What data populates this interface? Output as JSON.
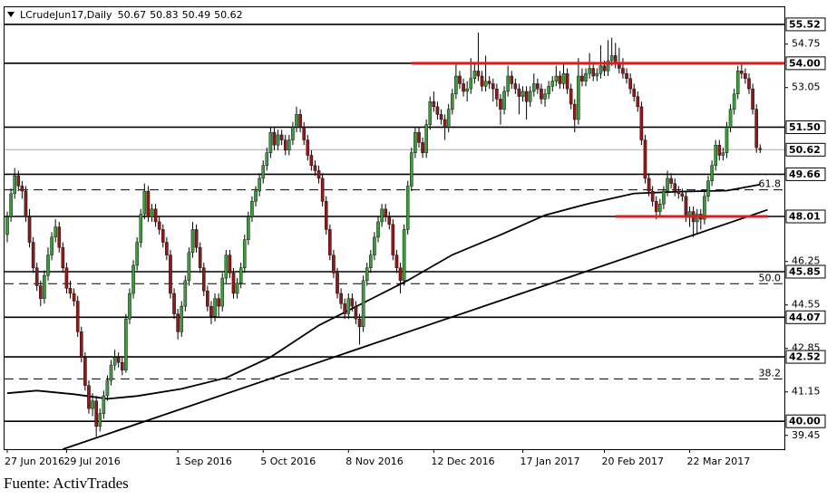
{
  "chart_data": {
    "type": "candlestick",
    "header": {
      "symbol": "LCrudeJun17,Daily"
    },
    "source": "Fuente: ActivTrades",
    "categories": [
      "27 Jun 2016",
      null,
      null,
      null,
      null,
      null,
      null,
      null,
      null,
      null,
      null,
      null,
      null,
      null,
      null,
      null,
      "29 Jul 2016",
      null,
      null,
      null,
      null,
      null,
      null,
      null,
      null,
      null,
      null,
      null,
      null,
      null,
      null,
      null,
      null,
      null,
      null,
      null,
      null,
      null,
      null,
      null,
      null,
      null,
      null,
      null,
      null,
      null,
      "1 Sep 2016",
      null,
      null,
      null,
      null,
      null,
      null,
      null,
      null,
      null,
      null,
      null,
      null,
      null,
      null,
      null,
      null,
      null,
      null,
      null,
      null,
      null,
      null,
      "5 Oct 2016",
      null,
      null,
      null,
      null,
      null,
      null,
      null,
      null,
      null,
      null,
      null,
      null,
      null,
      null,
      null,
      null,
      null,
      null,
      null,
      null,
      null,
      null,
      "8 Nov 2016",
      null,
      null,
      null,
      null,
      null,
      null,
      null,
      null,
      null,
      null,
      null,
      null,
      null,
      null,
      null,
      null,
      null,
      null,
      null,
      null,
      null,
      null,
      "12 Dec 2016",
      null,
      null,
      null,
      null,
      null,
      null,
      null,
      null,
      null,
      null,
      null,
      null,
      null,
      null,
      null,
      null,
      null,
      null,
      null,
      null,
      null,
      null,
      null,
      "17 Jan 2017",
      null,
      null,
      null,
      null,
      null,
      null,
      null,
      null,
      null,
      null,
      null,
      null,
      null,
      null,
      null,
      null,
      null,
      null,
      null,
      null,
      null,
      "20 Feb 2017",
      null,
      null,
      null,
      null,
      null,
      null,
      null,
      null,
      null,
      null,
      null,
      null,
      null,
      null,
      null,
      null,
      null,
      null,
      null,
      null,
      null,
      null,
      "22 Mar 2017",
      null,
      null,
      null,
      null,
      null,
      null,
      null,
      null,
      null,
      null,
      null,
      null,
      null,
      null,
      null,
      null,
      null,
      null,
      null
    ],
    "ohlc": [
      [
        47.3,
        48.2,
        47.0,
        48.0
      ],
      [
        48.0,
        49.1,
        47.8,
        48.9
      ],
      [
        48.9,
        49.9,
        48.7,
        49.6
      ],
      [
        49.6,
        49.8,
        49.0,
        49.2
      ],
      [
        49.2,
        49.4,
        48.7,
        49.0
      ],
      [
        49.0,
        49.2,
        47.8,
        48.0
      ],
      [
        48.0,
        48.3,
        46.8,
        47.0
      ],
      [
        47.0,
        47.2,
        45.8,
        46.0
      ],
      [
        46.0,
        46.2,
        45.1,
        45.3
      ],
      [
        45.3,
        45.5,
        44.5,
        44.8
      ],
      [
        44.8,
        45.9,
        44.6,
        45.7
      ],
      [
        45.7,
        46.8,
        45.5,
        46.5
      ],
      [
        46.5,
        47.4,
        46.3,
        47.2
      ],
      [
        47.2,
        47.9,
        47.0,
        47.6
      ],
      [
        47.6,
        47.8,
        46.6,
        46.8
      ],
      [
        46.8,
        47.0,
        45.8,
        46.0
      ],
      [
        46.0,
        46.2,
        45.0,
        45.2
      ],
      [
        45.2,
        45.5,
        44.8,
        45.0
      ],
      [
        45.0,
        45.2,
        44.5,
        44.7
      ],
      [
        44.7,
        44.9,
        43.3,
        43.5
      ],
      [
        43.5,
        43.7,
        42.3,
        42.5
      ],
      [
        42.5,
        42.7,
        41.2,
        41.4
      ],
      [
        41.4,
        41.6,
        40.3,
        40.5
      ],
      [
        40.5,
        41.1,
        40.2,
        40.8
      ],
      [
        40.8,
        41.0,
        39.4,
        39.8
      ],
      [
        39.8,
        40.5,
        39.6,
        40.3
      ],
      [
        40.3,
        41.2,
        40.1,
        41.0
      ],
      [
        41.0,
        41.8,
        40.8,
        41.6
      ],
      [
        41.6,
        42.4,
        41.4,
        42.2
      ],
      [
        42.2,
        42.8,
        42.0,
        42.5
      ],
      [
        42.5,
        42.7,
        42.1,
        42.3
      ],
      [
        42.3,
        42.5,
        41.8,
        42.0
      ],
      [
        42.0,
        44.2,
        41.9,
        44.0
      ],
      [
        44.0,
        45.2,
        43.8,
        45.0
      ],
      [
        45.0,
        46.3,
        44.8,
        46.1
      ],
      [
        46.1,
        47.2,
        45.9,
        47.0
      ],
      [
        47.0,
        48.3,
        46.8,
        48.1
      ],
      [
        48.1,
        49.3,
        47.9,
        49.0
      ],
      [
        49.0,
        49.2,
        47.8,
        48.0
      ],
      [
        48.0,
        48.5,
        47.8,
        48.3
      ],
      [
        48.3,
        48.5,
        47.6,
        47.8
      ],
      [
        47.8,
        48.0,
        47.3,
        47.5
      ],
      [
        47.5,
        47.7,
        46.8,
        47.0
      ],
      [
        47.0,
        47.2,
        46.3,
        46.5
      ],
      [
        46.5,
        46.7,
        44.8,
        45.0
      ],
      [
        45.0,
        45.2,
        44.0,
        44.2
      ],
      [
        44.2,
        44.4,
        43.2,
        43.5
      ],
      [
        43.5,
        44.7,
        43.3,
        44.5
      ],
      [
        44.5,
        45.7,
        44.3,
        45.5
      ],
      [
        45.5,
        46.8,
        45.3,
        46.6
      ],
      [
        46.6,
        47.8,
        46.4,
        47.5
      ],
      [
        47.5,
        47.7,
        46.6,
        46.8
      ],
      [
        46.8,
        47.0,
        45.8,
        46.0
      ],
      [
        46.0,
        46.2,
        44.9,
        45.1
      ],
      [
        45.1,
        45.3,
        44.3,
        44.5
      ],
      [
        44.5,
        44.7,
        43.8,
        44.1
      ],
      [
        44.1,
        45.0,
        43.9,
        44.8
      ],
      [
        44.8,
        45.0,
        44.1,
        44.5
      ],
      [
        44.5,
        45.8,
        44.3,
        45.6
      ],
      [
        45.6,
        46.7,
        45.4,
        46.5
      ],
      [
        46.5,
        46.7,
        45.6,
        45.8
      ],
      [
        45.8,
        46.0,
        44.8,
        45.0
      ],
      [
        45.0,
        45.6,
        44.8,
        45.4
      ],
      [
        45.4,
        46.2,
        45.2,
        46.0
      ],
      [
        46.0,
        47.3,
        45.8,
        47.1
      ],
      [
        47.1,
        48.2,
        46.9,
        48.0
      ],
      [
        48.0,
        48.8,
        47.8,
        48.6
      ],
      [
        48.6,
        49.2,
        48.4,
        49.0
      ],
      [
        49.0,
        49.7,
        48.8,
        49.5
      ],
      [
        49.5,
        50.2,
        49.3,
        50.0
      ],
      [
        50.0,
        50.7,
        49.8,
        50.5
      ],
      [
        50.5,
        51.5,
        50.3,
        51.3
      ],
      [
        51.3,
        51.5,
        50.6,
        50.8
      ],
      [
        50.8,
        51.4,
        50.6,
        51.2
      ],
      [
        51.2,
        51.4,
        50.8,
        51.0
      ],
      [
        51.0,
        51.2,
        50.4,
        50.6
      ],
      [
        50.6,
        51.2,
        50.4,
        51.0
      ],
      [
        51.0,
        51.7,
        50.8,
        51.5
      ],
      [
        51.5,
        52.3,
        51.3,
        52.0
      ],
      [
        52.0,
        52.2,
        51.3,
        51.5
      ],
      [
        51.5,
        51.7,
        50.8,
        51.0
      ],
      [
        51.0,
        51.2,
        50.2,
        50.4
      ],
      [
        50.4,
        50.6,
        49.8,
        50.0
      ],
      [
        50.0,
        50.2,
        49.6,
        49.8
      ],
      [
        49.8,
        50.0,
        49.3,
        49.5
      ],
      [
        49.5,
        49.7,
        48.4,
        48.6
      ],
      [
        48.6,
        48.8,
        47.3,
        47.5
      ],
      [
        47.5,
        47.7,
        46.3,
        46.5
      ],
      [
        46.5,
        46.7,
        45.6,
        45.8
      ],
      [
        45.8,
        46.0,
        44.8,
        45.0
      ],
      [
        45.0,
        45.2,
        44.4,
        44.6
      ],
      [
        44.6,
        44.8,
        44.0,
        44.2
      ],
      [
        44.2,
        45.0,
        44.0,
        44.8
      ],
      [
        44.8,
        45.0,
        44.3,
        44.5
      ],
      [
        44.5,
        44.7,
        43.8,
        44.0
      ],
      [
        44.0,
        44.2,
        43.0,
        43.7
      ],
      [
        43.7,
        45.7,
        43.5,
        45.5
      ],
      [
        45.5,
        46.2,
        45.3,
        46.0
      ],
      [
        46.0,
        46.7,
        45.8,
        46.5
      ],
      [
        46.5,
        47.4,
        46.3,
        47.2
      ],
      [
        47.2,
        48.0,
        47.0,
        47.8
      ],
      [
        47.8,
        48.5,
        47.6,
        48.3
      ],
      [
        48.3,
        48.5,
        47.8,
        48.0
      ],
      [
        48.0,
        48.2,
        47.5,
        47.7
      ],
      [
        47.7,
        47.9,
        46.3,
        46.5
      ],
      [
        46.5,
        46.7,
        45.8,
        46.0
      ],
      [
        46.0,
        46.2,
        45.0,
        45.5
      ],
      [
        45.5,
        47.7,
        45.3,
        47.5
      ],
      [
        47.5,
        49.4,
        47.3,
        49.2
      ],
      [
        49.2,
        50.7,
        49.0,
        50.5
      ],
      [
        50.5,
        51.5,
        50.3,
        51.3
      ],
      [
        51.3,
        51.5,
        50.7,
        50.9
      ],
      [
        50.9,
        51.1,
        50.3,
        50.5
      ],
      [
        50.5,
        51.8,
        50.3,
        51.6
      ],
      [
        51.6,
        52.7,
        51.4,
        52.5
      ],
      [
        52.5,
        52.9,
        52.1,
        52.3
      ],
      [
        52.3,
        52.5,
        51.8,
        52.0
      ],
      [
        52.0,
        52.2,
        51.6,
        51.8
      ],
      [
        51.8,
        52.0,
        51.0,
        51.5
      ],
      [
        51.5,
        52.4,
        51.3,
        52.2
      ],
      [
        52.2,
        53.0,
        52.0,
        52.8
      ],
      [
        52.8,
        54.0,
        52.6,
        53.5
      ],
      [
        53.5,
        53.7,
        53.0,
        53.2
      ],
      [
        53.2,
        53.4,
        52.7,
        52.9
      ],
      [
        52.9,
        53.3,
        52.5,
        53.0
      ],
      [
        53.0,
        54.2,
        52.8,
        53.4
      ],
      [
        53.4,
        54.0,
        53.2,
        53.7
      ],
      [
        53.7,
        55.2,
        53.3,
        53.5
      ],
      [
        53.5,
        53.7,
        52.9,
        53.1
      ],
      [
        53.1,
        54.3,
        52.9,
        53.3
      ],
      [
        53.3,
        53.5,
        53.0,
        53.2
      ],
      [
        53.2,
        53.4,
        52.5,
        53.0
      ],
      [
        53.0,
        53.2,
        52.3,
        52.6
      ],
      [
        52.6,
        52.8,
        51.6,
        52.2
      ],
      [
        52.2,
        53.1,
        52.0,
        52.9
      ],
      [
        52.9,
        53.9,
        52.7,
        53.5
      ],
      [
        53.5,
        53.7,
        53.0,
        53.2
      ],
      [
        53.2,
        53.4,
        52.8,
        53.0
      ],
      [
        53.0,
        53.2,
        52.0,
        52.7
      ],
      [
        52.7,
        53.1,
        52.5,
        52.9
      ],
      [
        52.9,
        53.1,
        51.8,
        52.5
      ],
      [
        52.5,
        53.1,
        52.3,
        52.9
      ],
      [
        52.9,
        53.6,
        52.7,
        53.2
      ],
      [
        53.2,
        53.4,
        52.8,
        53.0
      ],
      [
        53.0,
        53.2,
        52.4,
        52.6
      ],
      [
        52.6,
        53.0,
        52.3,
        52.8
      ],
      [
        52.8,
        53.3,
        52.6,
        53.1
      ],
      [
        53.1,
        53.5,
        52.9,
        53.3
      ],
      [
        53.3,
        53.9,
        53.1,
        53.5
      ],
      [
        53.5,
        53.7,
        53.0,
        53.2
      ],
      [
        53.2,
        54.0,
        53.0,
        53.6
      ],
      [
        53.6,
        53.8,
        52.8,
        53.0
      ],
      [
        53.0,
        53.2,
        52.2,
        52.4
      ],
      [
        52.4,
        52.6,
        51.3,
        51.8
      ],
      [
        51.8,
        54.2,
        51.6,
        53.5
      ],
      [
        53.5,
        53.8,
        53.1,
        53.3
      ],
      [
        53.3,
        53.8,
        53.1,
        53.6
      ],
      [
        53.6,
        54.4,
        53.4,
        53.8
      ],
      [
        53.8,
        54.0,
        53.3,
        53.5
      ],
      [
        53.5,
        53.8,
        53.3,
        53.6
      ],
      [
        53.6,
        54.7,
        53.4,
        53.9
      ],
      [
        53.9,
        54.1,
        53.5,
        53.7
      ],
      [
        53.7,
        54.9,
        53.5,
        54.1
      ],
      [
        54.1,
        55.0,
        53.9,
        54.3
      ],
      [
        54.3,
        54.8,
        53.8,
        54.0
      ],
      [
        54.0,
        54.6,
        53.6,
        53.8
      ],
      [
        53.8,
        54.2,
        53.4,
        53.6
      ],
      [
        53.6,
        53.8,
        53.2,
        53.4
      ],
      [
        53.4,
        53.6,
        52.8,
        53.0
      ],
      [
        53.0,
        53.2,
        52.5,
        52.7
      ],
      [
        52.7,
        52.9,
        52.1,
        52.3
      ],
      [
        52.3,
        52.5,
        50.8,
        51.0
      ],
      [
        51.0,
        51.2,
        49.3,
        49.5
      ],
      [
        49.5,
        49.7,
        48.8,
        49.0
      ],
      [
        49.0,
        49.2,
        48.4,
        48.6
      ],
      [
        48.6,
        48.8,
        47.9,
        48.2
      ],
      [
        48.2,
        48.7,
        48.0,
        48.5
      ],
      [
        48.5,
        49.2,
        48.3,
        49.0
      ],
      [
        49.0,
        49.8,
        48.8,
        49.5
      ],
      [
        49.5,
        49.7,
        49.1,
        49.3
      ],
      [
        49.3,
        49.5,
        48.8,
        49.0
      ],
      [
        49.0,
        49.2,
        48.7,
        48.9
      ],
      [
        48.9,
        49.1,
        48.6,
        48.8
      ],
      [
        48.8,
        49.0,
        47.8,
        48.0
      ],
      [
        48.0,
        48.4,
        47.6,
        48.2
      ],
      [
        48.2,
        48.4,
        47.2,
        47.8
      ],
      [
        47.8,
        48.3,
        47.3,
        48.1
      ],
      [
        48.1,
        48.3,
        47.5,
        47.9
      ],
      [
        47.9,
        49.0,
        47.7,
        48.8
      ],
      [
        48.8,
        49.6,
        48.6,
        49.4
      ],
      [
        49.4,
        50.2,
        49.2,
        50.0
      ],
      [
        50.0,
        51.0,
        49.8,
        50.8
      ],
      [
        50.8,
        51.0,
        50.2,
        50.4
      ],
      [
        50.4,
        50.7,
        50.2,
        50.5
      ],
      [
        50.5,
        51.7,
        50.3,
        51.5
      ],
      [
        51.5,
        52.4,
        51.3,
        52.2
      ],
      [
        52.2,
        53.0,
        52.0,
        52.8
      ],
      [
        52.8,
        53.9,
        52.6,
        53.7
      ],
      [
        53.7,
        54.0,
        53.4,
        53.6
      ],
      [
        53.6,
        53.8,
        53.2,
        53.4
      ],
      [
        53.4,
        53.6,
        52.8,
        53.0
      ],
      [
        53.0,
        53.2,
        52.0,
        52.2
      ],
      [
        52.2,
        52.4,
        50.5,
        50.7
      ],
      [
        50.67,
        50.83,
        50.49,
        50.62
      ]
    ],
    "up_color": "#3c9a3c",
    "down_color": "#8b1a1a",
    "ylim": [
      38.91,
      56.19
    ],
    "yticks": [
      54.75,
      53.05,
      46.25,
      44.55,
      42.85,
      41.15,
      39.45
    ],
    "levels": [
      55.52,
      {
        "value": 54,
        "label": "54.00"
      },
      {
        "value": 51.5,
        "label": "51.50"
      },
      50.62,
      49.66,
      48.01,
      45.85,
      44.07,
      42.52,
      {
        "value": 40,
        "label": "40.00"
      }
    ],
    "current_price": 50.62,
    "fib": [
      {
        "price": 49.05,
        "label": "61.8"
      },
      {
        "price": 45.38,
        "label": "50.0"
      },
      {
        "price": 41.66,
        "label": "38.2"
      }
    ],
    "highlights": [
      {
        "y": 54,
        "x": [
          109,
          210
        ]
      },
      {
        "y": 48.01,
        "x": [
          164,
          205
        ]
      }
    ],
    "highlight_color": "#d42020",
    "ma": {
      "x": [
        0,
        8,
        18,
        27,
        35,
        47,
        59,
        71,
        84,
        96,
        108,
        120,
        133,
        145,
        157,
        169,
        181,
        194,
        203
      ],
      "values": [
        41.1,
        41.2,
        41.06,
        40.88,
        40.99,
        41.27,
        41.7,
        42.51,
        43.75,
        44.63,
        45.51,
        46.51,
        47.29,
        48.06,
        48.52,
        48.91,
        48.98,
        49.02,
        49.26
      ]
    },
    "trendline": {
      "x": [
        15,
        205
      ],
      "values": [
        38.91,
        48.27
      ]
    }
  }
}
